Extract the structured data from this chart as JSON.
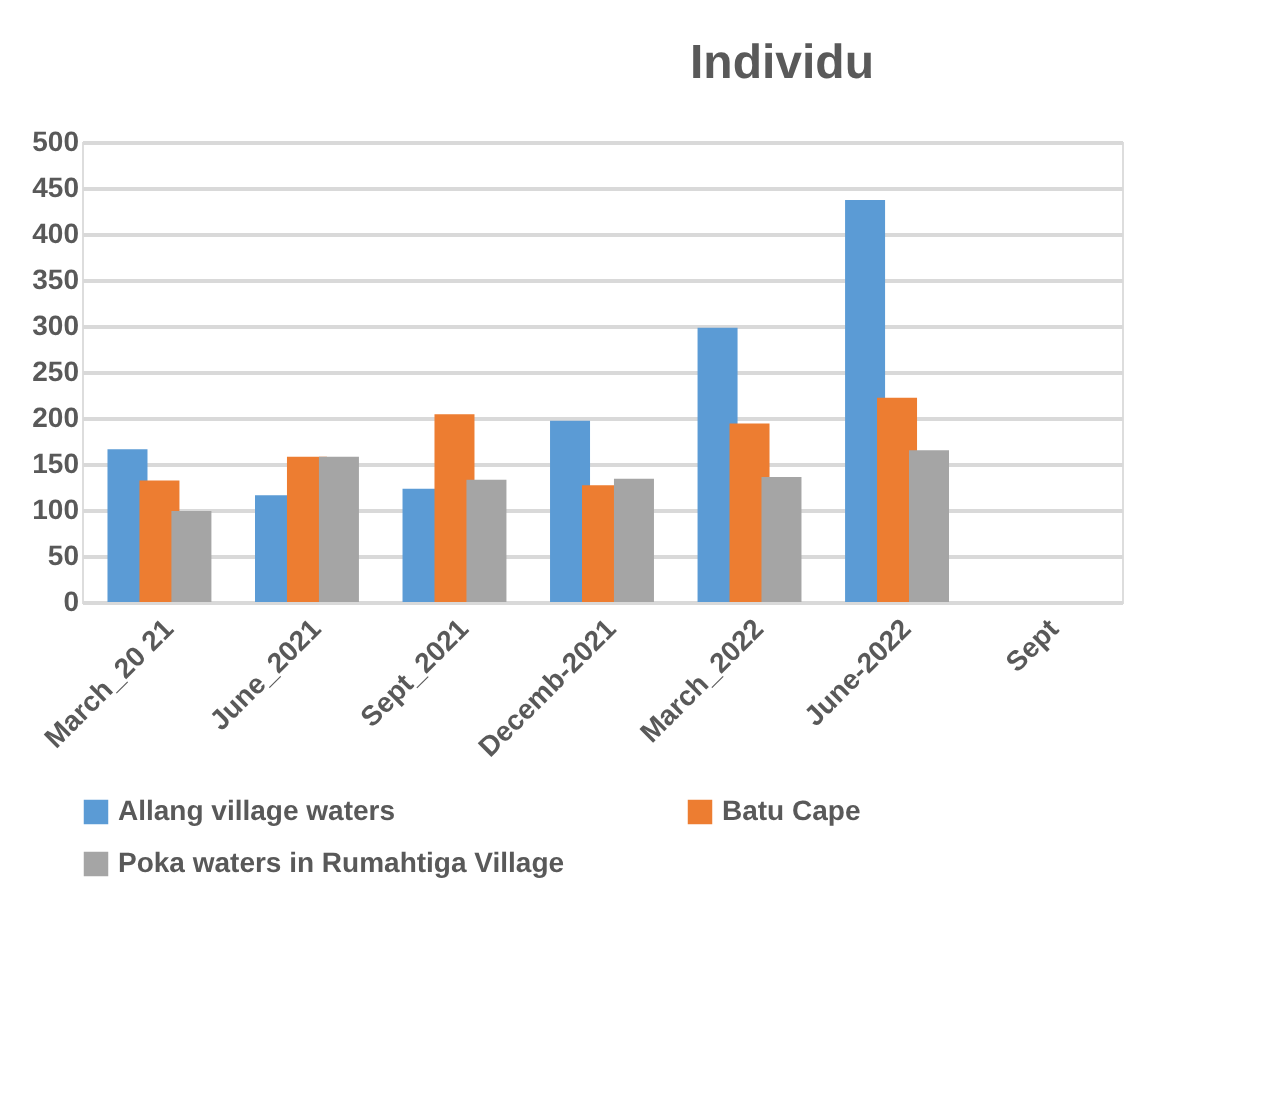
{
  "chart_data": {
    "type": "bar",
    "title": "Individu",
    "categories": [
      "March_20 21",
      "June_2021",
      "Sept_2021",
      "Decemb-2021",
      "March_2022",
      "June-2022",
      "Sept"
    ],
    "series": [
      {
        "name": "Allang village waters",
        "color": "#5b9bd5",
        "values": [
          166,
          116,
          123,
          197,
          298,
          437,
          null
        ]
      },
      {
        "name": "Batu Cape",
        "color": "#ed7d31",
        "values": [
          132,
          158,
          204,
          127,
          194,
          222,
          null
        ]
      },
      {
        "name": "Poka waters in Rumahtiga Village",
        "color": "#a5a5a5",
        "values": [
          99,
          158,
          133,
          134,
          136,
          165,
          null
        ]
      }
    ],
    "ylim": [
      0,
      500
    ],
    "yticks": [
      0,
      50,
      100,
      150,
      200,
      250,
      300,
      350,
      400,
      450,
      500
    ],
    "grid": "y",
    "legend": "bottom"
  }
}
